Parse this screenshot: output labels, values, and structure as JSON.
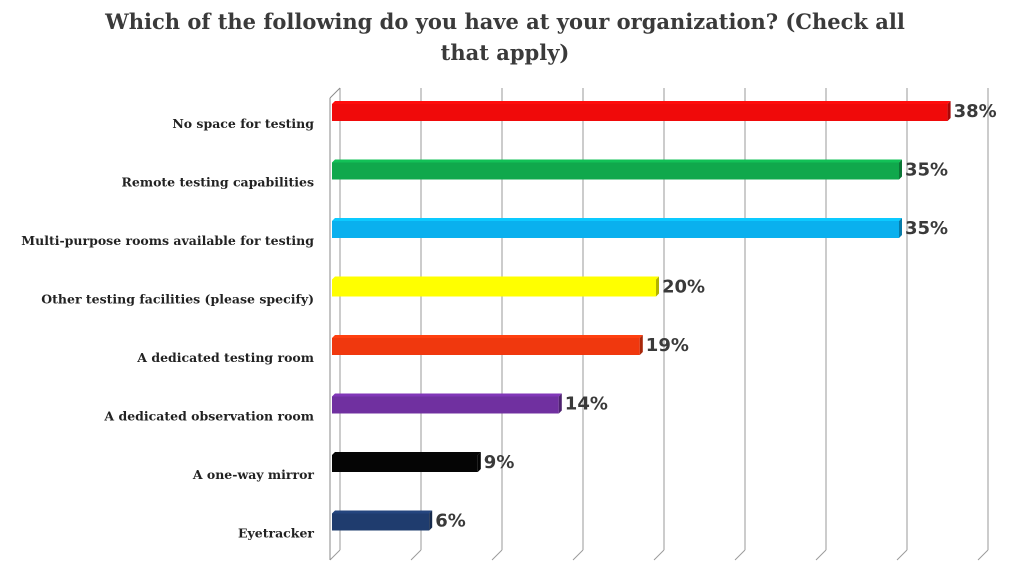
{
  "chart_data": {
    "type": "bar",
    "orientation": "horizontal",
    "title": "Which of the following do you have at your organization? (Check all that apply)",
    "xlabel": "",
    "ylabel": "",
    "categories": [
      "No space for testing",
      "Remote testing capabilities",
      "Multi-purpose rooms available for testing",
      "Other testing facilities (please specify)",
      "A dedicated testing room",
      "A dedicated observation room",
      "A one-way mirror",
      "Eyetracker"
    ],
    "values": [
      38,
      35,
      35,
      20,
      19,
      14,
      9,
      6
    ],
    "value_labels": [
      "38%",
      "35%",
      "35%",
      "20%",
      "19%",
      "14%",
      "9%",
      "6%"
    ],
    "colors": [
      "#f00a0a",
      "#10a84c",
      "#0ab0ee",
      "#ffff00",
      "#f0380e",
      "#7030a0",
      "#050505",
      "#1f3c6e"
    ],
    "xlim": [
      0,
      40
    ],
    "gridlines": true,
    "legend": "none"
  }
}
